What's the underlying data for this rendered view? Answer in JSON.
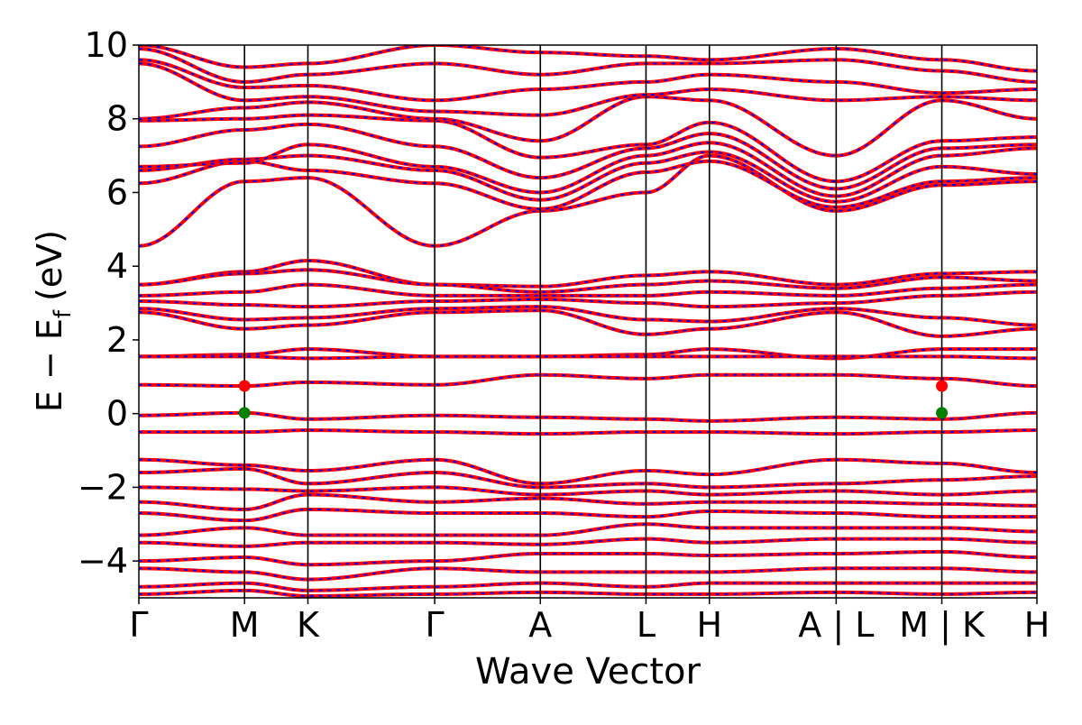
{
  "chart_data": {
    "type": "line",
    "title": "",
    "xlabel": "Wave Vector",
    "ylabel": "E − E",
    "ylabel_subscript": "f",
    "ylabel_unit": "(eV)",
    "ylim": [
      -5,
      10
    ],
    "yticks": [
      -4,
      -2,
      0,
      2,
      4,
      6,
      8,
      10
    ],
    "ytick_labels": [
      "−4",
      "−2",
      "0",
      "2",
      "4",
      "6",
      "8",
      "10"
    ],
    "xlim": [
      0,
      8.5
    ],
    "high_symmetry_points": [
      {
        "label": "Γ",
        "x": 0.0
      },
      {
        "label": "M",
        "x": 1.0
      },
      {
        "label": "K",
        "x": 1.6
      },
      {
        "label": "Γ",
        "x": 2.8
      },
      {
        "label": "A",
        "x": 3.8
      },
      {
        "label": "L",
        "x": 4.8
      },
      {
        "label": "H",
        "x": 5.4
      },
      {
        "label": "A | L",
        "x": 6.6
      },
      {
        "label": "M | K",
        "x": 7.6
      },
      {
        "label": "H",
        "x": 8.5
      }
    ],
    "band_colors": {
      "solid": "#ff0000",
      "dashed": "#0000ff"
    },
    "band_extrema": {
      "cbm": {
        "x": 1.0,
        "y": 0.75,
        "color": "#ff0000"
      },
      "vbm": {
        "x": 1.0,
        "y": 0.02,
        "color": "#008000"
      },
      "cbm2": {
        "x": 7.6,
        "y": 0.75,
        "color": "#ff0000"
      },
      "vbm2": {
        "x": 7.6,
        "y": 0.02,
        "color": "#008000"
      }
    },
    "bands": [
      [
        4.55,
        6.3,
        6.4,
        4.55,
        5.5,
        6.0,
        7.0,
        5.5,
        6.2,
        6.3,
        6.4
      ],
      [
        6.25,
        6.85,
        6.6,
        6.25,
        5.55,
        6.55,
        6.85,
        5.6,
        6.3,
        6.4,
        6.8
      ],
      [
        6.6,
        6.9,
        7.0,
        6.6,
        5.8,
        6.8,
        7.1,
        5.75,
        6.7,
        6.5,
        6.95
      ],
      [
        6.7,
        6.8,
        7.3,
        6.7,
        6.0,
        7.0,
        7.35,
        5.9,
        7.0,
        7.2,
        7.1
      ],
      [
        7.25,
        7.7,
        7.85,
        7.25,
        6.4,
        7.2,
        7.6,
        6.1,
        7.2,
        7.3,
        7.3
      ],
      [
        7.95,
        8.0,
        8.1,
        7.95,
        6.95,
        7.3,
        7.9,
        6.3,
        7.4,
        7.5,
        7.5
      ],
      [
        8.0,
        8.3,
        8.45,
        8.0,
        7.4,
        8.6,
        8.5,
        7.0,
        8.5,
        8.0,
        7.6
      ],
      [
        9.5,
        8.5,
        8.6,
        8.2,
        8.1,
        8.65,
        8.8,
        8.5,
        8.6,
        8.5,
        8.4
      ],
      [
        9.6,
        8.85,
        8.9,
        8.5,
        8.8,
        9.0,
        9.2,
        9.0,
        8.7,
        8.8,
        8.9
      ],
      [
        9.9,
        9.0,
        9.2,
        9.5,
        9.2,
        9.5,
        9.5,
        9.6,
        9.3,
        9.0,
        9.0
      ],
      [
        10.0,
        9.4,
        9.5,
        10.0,
        9.8,
        9.7,
        9.6,
        9.9,
        9.6,
        9.3,
        9.3
      ],
      [
        3.5,
        3.85,
        4.15,
        3.5,
        3.45,
        3.75,
        3.85,
        3.5,
        3.8,
        3.85,
        3.85
      ],
      [
        3.5,
        3.8,
        3.9,
        3.5,
        3.3,
        3.5,
        3.6,
        3.4,
        3.7,
        3.6,
        3.6
      ],
      [
        3.2,
        3.3,
        3.5,
        3.2,
        3.2,
        3.2,
        3.3,
        3.2,
        3.4,
        3.5,
        3.5
      ],
      [
        3.05,
        2.95,
        2.9,
        3.05,
        3.1,
        3.0,
        2.9,
        3.0,
        3.2,
        3.3,
        3.3
      ],
      [
        2.85,
        2.55,
        2.6,
        2.85,
        2.9,
        2.55,
        2.5,
        2.85,
        2.6,
        2.4,
        2.4
      ],
      [
        2.75,
        2.3,
        2.4,
        2.75,
        2.8,
        2.15,
        2.3,
        2.75,
        2.1,
        2.3,
        2.3
      ],
      [
        1.55,
        1.6,
        1.75,
        1.55,
        1.55,
        1.6,
        1.75,
        1.5,
        1.75,
        1.75,
        1.7
      ],
      [
        1.55,
        1.55,
        1.5,
        1.55,
        1.55,
        1.55,
        1.55,
        1.55,
        1.55,
        1.5,
        1.5
      ],
      [
        0.78,
        0.75,
        0.85,
        0.78,
        1.05,
        0.95,
        1.05,
        1.05,
        0.95,
        0.75,
        1.0
      ],
      [
        -0.05,
        0.02,
        -0.15,
        -0.05,
        -0.1,
        -0.15,
        -0.2,
        -0.1,
        -0.15,
        0.02,
        -0.1
      ],
      [
        -0.5,
        -0.5,
        -0.45,
        -0.5,
        -0.55,
        -0.5,
        -0.5,
        -0.55,
        -0.5,
        -0.45,
        -0.5
      ],
      [
        -1.25,
        -1.4,
        -1.55,
        -1.25,
        -1.9,
        -1.55,
        -1.65,
        -1.25,
        -1.35,
        -1.6,
        -1.6
      ],
      [
        -1.6,
        -1.5,
        -1.9,
        -1.6,
        -2.0,
        -1.9,
        -2.0,
        -1.9,
        -1.8,
        -1.7,
        -1.7
      ],
      [
        -2.0,
        -2.05,
        -2.1,
        -2.0,
        -2.2,
        -2.1,
        -2.2,
        -2.1,
        -2.2,
        -2.1,
        -2.1
      ],
      [
        -2.4,
        -2.6,
        -2.2,
        -2.4,
        -2.3,
        -2.45,
        -2.4,
        -2.4,
        -2.45,
        -2.5,
        -2.5
      ],
      [
        -2.7,
        -2.9,
        -2.6,
        -2.7,
        -2.7,
        -2.8,
        -2.65,
        -2.7,
        -2.8,
        -2.8,
        -2.8
      ],
      [
        -3.3,
        -3.1,
        -3.3,
        -3.3,
        -3.3,
        -3.0,
        -3.1,
        -3.1,
        -3.1,
        -3.2,
        -3.2
      ],
      [
        -3.5,
        -3.6,
        -3.5,
        -3.5,
        -3.55,
        -3.4,
        -3.5,
        -3.4,
        -3.4,
        -3.5,
        -3.5
      ],
      [
        -4.0,
        -3.9,
        -4.1,
        -4.0,
        -3.8,
        -3.8,
        -3.85,
        -3.8,
        -3.75,
        -3.9,
        -3.9
      ],
      [
        -4.2,
        -4.3,
        -4.5,
        -4.2,
        -4.3,
        -4.3,
        -4.3,
        -4.2,
        -4.2,
        -4.3,
        -4.3
      ],
      [
        -4.7,
        -4.6,
        -4.8,
        -4.7,
        -4.6,
        -4.7,
        -4.6,
        -4.6,
        -4.6,
        -4.6,
        -4.6
      ],
      [
        -4.9,
        -4.8,
        -4.95,
        -4.9,
        -4.85,
        -4.9,
        -4.9,
        -4.85,
        -4.9,
        -4.85,
        -4.85
      ]
    ]
  }
}
